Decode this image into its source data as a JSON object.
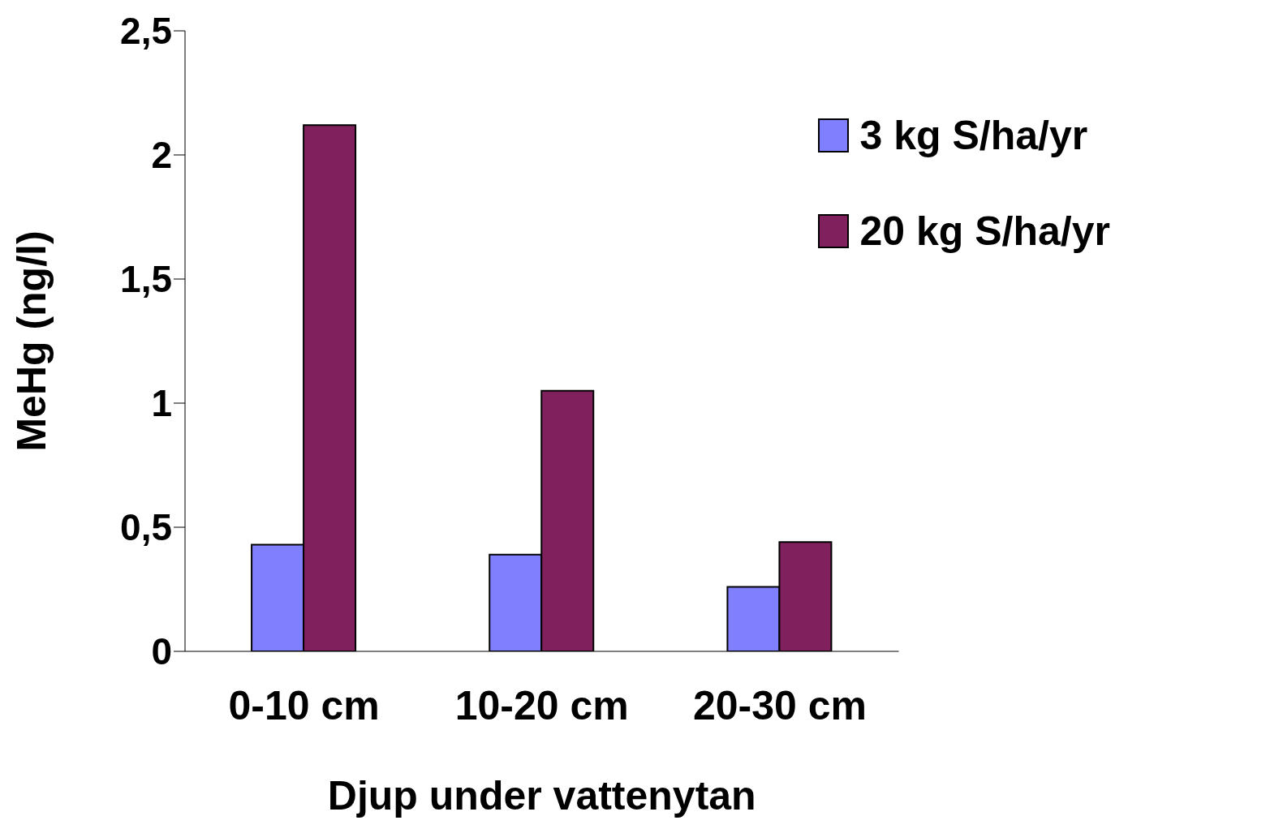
{
  "chart_data": {
    "type": "bar",
    "xlabel": "Djup under vattenytan",
    "ylabel": "MeHg (ng/l)",
    "categories": [
      "0-10 cm",
      "10-20 cm",
      "20-30 cm"
    ],
    "series": [
      {
        "name": "3 kg S/ha/yr",
        "color": "#8080ff",
        "values": [
          0.43,
          0.39,
          0.26
        ]
      },
      {
        "name": "20 kg S/ha/yr",
        "color": "#80205c",
        "values": [
          2.12,
          1.05,
          0.44
        ]
      }
    ],
    "ylim": [
      0,
      2.5
    ],
    "yticks": [
      0,
      {
        "value": 0.5,
        "label": "0,5"
      },
      1,
      {
        "value": 1.5,
        "label": "1,5"
      },
      2,
      {
        "value": 2.5,
        "label": "2,5"
      }
    ],
    "grid": false,
    "legend": "top right"
  }
}
